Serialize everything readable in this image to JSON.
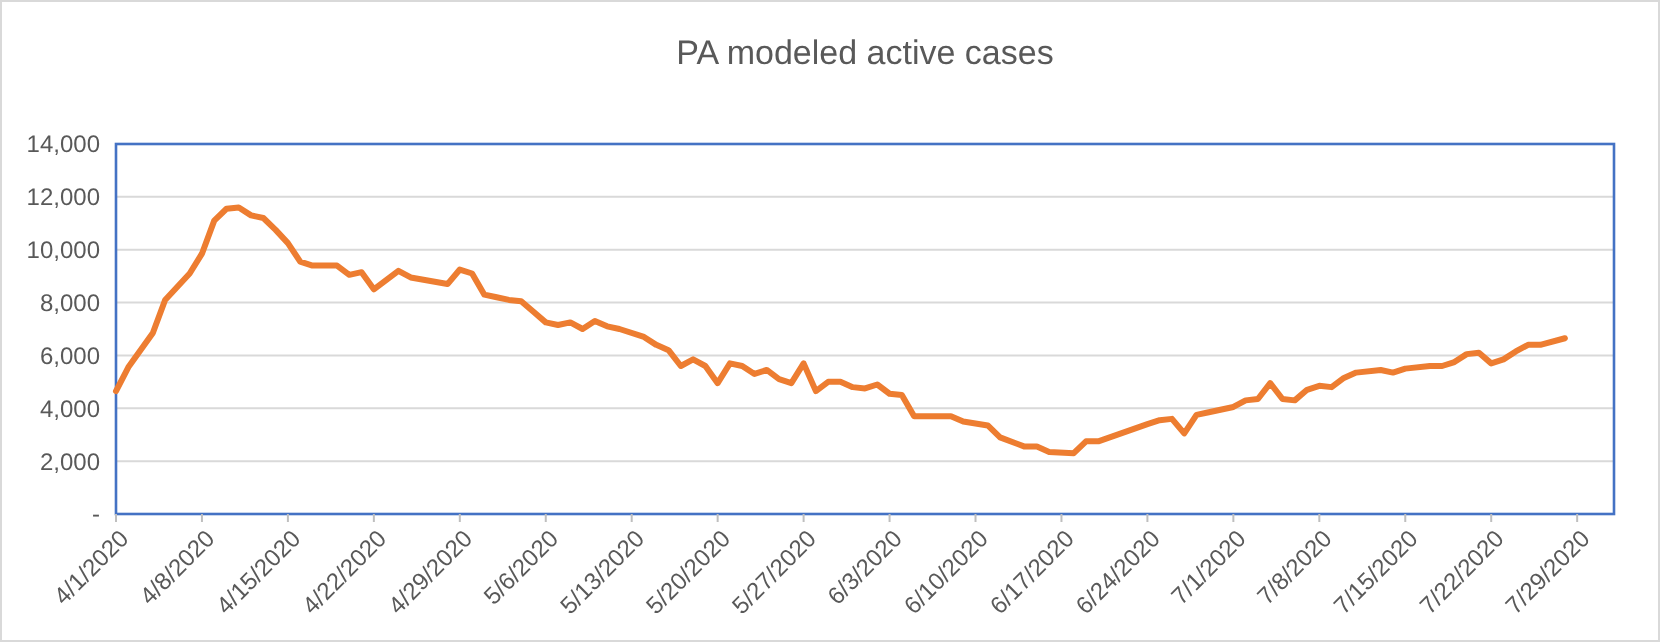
{
  "chart_data": {
    "type": "line",
    "title": "PA modeled active cases",
    "x": [
      "2020-04-01",
      "2020-04-02",
      "2020-04-04",
      "2020-04-05",
      "2020-04-07",
      "2020-04-08",
      "2020-04-09",
      "2020-04-10",
      "2020-04-11",
      "2020-04-12",
      "2020-04-13",
      "2020-04-14",
      "2020-04-15",
      "2020-04-16",
      "2020-04-17",
      "2020-04-19",
      "2020-04-20",
      "2020-04-21",
      "2020-04-22",
      "2020-04-24",
      "2020-04-25",
      "2020-04-28",
      "2020-04-29",
      "2020-04-30",
      "2020-05-01",
      "2020-05-02",
      "2020-05-03",
      "2020-05-04",
      "2020-05-05",
      "2020-05-06",
      "2020-05-07",
      "2020-05-08",
      "2020-05-09",
      "2020-05-10",
      "2020-05-11",
      "2020-05-12",
      "2020-05-14",
      "2020-05-15",
      "2020-05-16",
      "2020-05-17",
      "2020-05-18",
      "2020-05-19",
      "2020-05-20",
      "2020-05-21",
      "2020-05-22",
      "2020-05-23",
      "2020-05-24",
      "2020-05-25",
      "2020-05-26",
      "2020-05-27",
      "2020-05-28",
      "2020-05-29",
      "2020-05-30",
      "2020-05-31",
      "2020-06-01",
      "2020-06-02",
      "2020-06-03",
      "2020-06-04",
      "2020-06-05",
      "2020-06-08",
      "2020-06-09",
      "2020-06-11",
      "2020-06-12",
      "2020-06-14",
      "2020-06-15",
      "2020-06-16",
      "2020-06-18",
      "2020-06-19",
      "2020-06-20",
      "2020-06-24",
      "2020-06-25",
      "2020-06-26",
      "2020-06-27",
      "2020-06-28",
      "2020-06-29",
      "2020-07-01",
      "2020-07-02",
      "2020-07-03",
      "2020-07-04",
      "2020-07-05",
      "2020-07-06",
      "2020-07-07",
      "2020-07-08",
      "2020-07-09",
      "2020-07-10",
      "2020-07-11",
      "2020-07-13",
      "2020-07-14",
      "2020-07-15",
      "2020-07-17",
      "2020-07-18",
      "2020-07-19",
      "2020-07-20",
      "2020-07-21",
      "2020-07-22",
      "2020-07-23",
      "2020-07-24",
      "2020-07-25",
      "2020-07-26",
      "2020-07-28"
    ],
    "series": [
      {
        "color": "#ed7d31",
        "values": [
          4650,
          5550,
          6850,
          8100,
          9100,
          9850,
          11100,
          11550,
          11600,
          11300,
          11200,
          10750,
          10250,
          9550,
          9400,
          9400,
          9050,
          9150,
          8500,
          9200,
          8950,
          8700,
          9250,
          9100,
          8300,
          8200,
          8100,
          8050,
          7650,
          7250,
          7150,
          7250,
          7000,
          7300,
          7100,
          7000,
          6700,
          6400,
          6200,
          5600,
          5850,
          5600,
          4950,
          5700,
          5600,
          5300,
          5450,
          5100,
          4950,
          5700,
          4650,
          5000,
          5000,
          4800,
          4750,
          4900,
          4550,
          4500,
          3700,
          3700,
          3500,
          3350,
          2900,
          2550,
          2550,
          2350,
          2300,
          2750,
          2750,
          3400,
          3550,
          3600,
          3050,
          3750,
          3850,
          4050,
          4300,
          4350,
          4950,
          4350,
          4300,
          4700,
          4850,
          4800,
          5150,
          5350,
          5450,
          5350,
          5500,
          5600,
          5600,
          5750,
          6050,
          6100,
          5700,
          5850,
          6150,
          6400,
          6400,
          6650
        ]
      }
    ],
    "xlim": [
      "2020-04-01",
      "2020-08-01"
    ],
    "xticks": [
      {
        "value": "2020-04-01",
        "label": "4/1/2020"
      },
      {
        "value": "2020-04-08",
        "label": "4/8/2020"
      },
      {
        "value": "2020-04-15",
        "label": "4/15/2020"
      },
      {
        "value": "2020-04-22",
        "label": "4/22/2020"
      },
      {
        "value": "2020-04-29",
        "label": "4/29/2020"
      },
      {
        "value": "2020-05-06",
        "label": "5/6/2020"
      },
      {
        "value": "2020-05-13",
        "label": "5/13/2020"
      },
      {
        "value": "2020-05-20",
        "label": "5/20/2020"
      },
      {
        "value": "2020-05-27",
        "label": "5/27/2020"
      },
      {
        "value": "2020-06-03",
        "label": "6/3/2020"
      },
      {
        "value": "2020-06-10",
        "label": "6/10/2020"
      },
      {
        "value": "2020-06-17",
        "label": "6/17/2020"
      },
      {
        "value": "2020-06-24",
        "label": "6/24/2020"
      },
      {
        "value": "2020-07-01",
        "label": "7/1/2020"
      },
      {
        "value": "2020-07-08",
        "label": "7/8/2020"
      },
      {
        "value": "2020-07-15",
        "label": "7/15/2020"
      },
      {
        "value": "2020-07-22",
        "label": "7/22/2020"
      },
      {
        "value": "2020-07-29",
        "label": "7/29/2020"
      }
    ],
    "ylim": [
      0,
      14000
    ],
    "yticks": [
      {
        "value": 0,
        "label": "-"
      },
      {
        "value": 2000,
        "label": "2,000"
      },
      {
        "value": 4000,
        "label": "4,000"
      },
      {
        "value": 6000,
        "label": "6,000"
      },
      {
        "value": 8000,
        "label": "8,000"
      },
      {
        "value": 10000,
        "label": "10,000"
      },
      {
        "value": 12000,
        "label": "12,000"
      },
      {
        "value": 14000,
        "label": "14,000"
      }
    ],
    "grid": "y",
    "marker": "none",
    "line_style": "solid"
  }
}
